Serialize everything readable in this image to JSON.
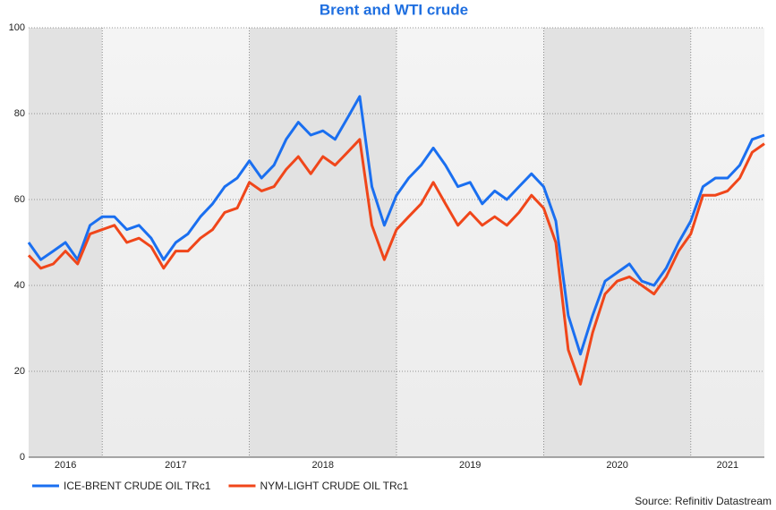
{
  "chart_data": {
    "type": "line",
    "title": "Brent and WTI crude",
    "source": "Source: Refinitiv Datastream",
    "x": [
      2016.5,
      2016.583,
      2016.667,
      2016.75,
      2016.833,
      2016.917,
      2017,
      2017.083,
      2017.167,
      2017.25,
      2017.333,
      2017.417,
      2017.5,
      2017.583,
      2017.667,
      2017.75,
      2017.833,
      2017.917,
      2018,
      2018.083,
      2018.167,
      2018.25,
      2018.333,
      2018.417,
      2018.5,
      2018.583,
      2018.667,
      2018.75,
      2018.833,
      2018.917,
      2019,
      2019.083,
      2019.167,
      2019.25,
      2019.333,
      2019.417,
      2019.5,
      2019.583,
      2019.667,
      2019.75,
      2019.833,
      2019.917,
      2020,
      2020.083,
      2020.167,
      2020.25,
      2020.333,
      2020.417,
      2020.5,
      2020.583,
      2020.667,
      2020.75,
      2020.833,
      2020.917,
      2021,
      2021.083,
      2021.167,
      2021.25,
      2021.333,
      2021.417,
      2021.5
    ],
    "series": [
      {
        "name": "ICE-BRENT CRUDE OIL TRc1",
        "color": "#1a6ff0",
        "values": [
          50,
          46,
          48,
          50,
          46,
          54,
          56,
          56,
          53,
          54,
          51,
          46,
          50,
          52,
          56,
          59,
          63,
          65,
          69,
          65,
          68,
          74,
          78,
          75,
          76,
          74,
          79,
          84,
          63,
          54,
          61,
          65,
          68,
          72,
          68,
          63,
          64,
          59,
          62,
          60,
          63,
          66,
          63,
          55,
          33,
          24,
          33,
          41,
          43,
          45,
          41,
          40,
          44,
          50,
          55,
          63,
          65,
          65,
          68,
          74,
          75
        ]
      },
      {
        "name": "NYM-LIGHT CRUDE OIL TRc1",
        "color": "#f0461a",
        "values": [
          47,
          44,
          45,
          48,
          45,
          52,
          53,
          54,
          50,
          51,
          49,
          44,
          48,
          48,
          51,
          53,
          57,
          58,
          64,
          62,
          63,
          67,
          70,
          66,
          70,
          68,
          71,
          74,
          54,
          46,
          53,
          56,
          59,
          64,
          59,
          54,
          57,
          54,
          56,
          54,
          57,
          61,
          58,
          50,
          25,
          17,
          29,
          38,
          41,
          42,
          40,
          38,
          42,
          48,
          52,
          61,
          61,
          62,
          65,
          71,
          73
        ]
      }
    ],
    "xlim": [
      2016.5,
      2021.5
    ],
    "xticks": [
      2017,
      2018,
      2019,
      2020,
      2021
    ],
    "year_labels": [
      2016,
      2017,
      2018,
      2019,
      2020,
      2021
    ],
    "ylim": [
      0,
      100
    ],
    "yticks": [
      0,
      20,
      40,
      60,
      80,
      100
    ],
    "grid": true
  }
}
